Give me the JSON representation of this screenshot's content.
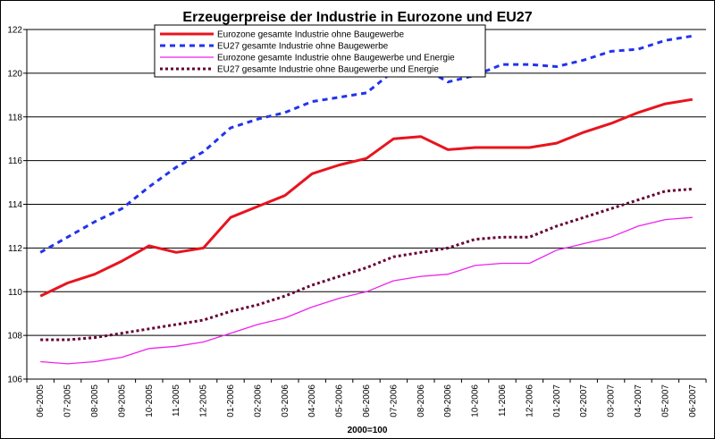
{
  "chart_data": {
    "type": "line",
    "title": "Erzeugerpreise der Industrie in Eurozone und EU27",
    "xlabel": "2000=100",
    "ylabel": "",
    "ylim": [
      106,
      122
    ],
    "yticks": [
      106,
      108,
      110,
      112,
      114,
      116,
      118,
      120,
      122
    ],
    "grid": "horizontal",
    "legend_position": "top-center",
    "categories": [
      "06-2005",
      "07-2005",
      "08-2005",
      "09-2005",
      "10-2005",
      "11-2005",
      "12-2005",
      "01-2006",
      "02-2006",
      "03-2006",
      "04-2006",
      "05-2006",
      "06-2006",
      "07-2006",
      "08-2006",
      "09-2006",
      "10-2006",
      "11-2006",
      "12-2006",
      "01-2007",
      "02-2007",
      "03-2007",
      "04-2007",
      "05-2007",
      "06-2007"
    ],
    "series": [
      {
        "name": "Eurozone gesamte Industrie ohne Baugewerbe",
        "color": "#e8141e",
        "style": "solid-thick",
        "values": [
          109.8,
          110.4,
          110.8,
          111.4,
          112.1,
          111.8,
          112.0,
          113.4,
          113.9,
          114.4,
          115.4,
          115.8,
          116.1,
          117.0,
          117.1,
          116.5,
          116.6,
          116.6,
          116.6,
          116.8,
          117.3,
          117.7,
          118.2,
          118.6,
          118.8
        ]
      },
      {
        "name": "EU27 gesamte Industrie ohne Baugewerbe",
        "color": "#2233ee",
        "style": "dashed-thick",
        "values": [
          111.8,
          112.5,
          113.2,
          113.8,
          114.8,
          115.7,
          116.4,
          117.5,
          117.9,
          118.2,
          118.7,
          118.9,
          119.1,
          120.1,
          120.3,
          119.6,
          119.9,
          120.4,
          120.4,
          120.3,
          120.6,
          121.0,
          121.1,
          121.5,
          121.7
        ]
      },
      {
        "name": "Eurozone gesamte Industrie ohne Baugewerbe und Energie",
        "color": "#ee22ee",
        "style": "solid-thin",
        "values": [
          106.8,
          106.7,
          106.8,
          107.0,
          107.4,
          107.5,
          107.7,
          108.1,
          108.5,
          108.8,
          109.3,
          109.7,
          110.0,
          110.5,
          110.7,
          110.8,
          111.2,
          111.3,
          111.3,
          111.9,
          112.2,
          112.5,
          113.0,
          113.3,
          113.4
        ]
      },
      {
        "name": "EU27 gesamte Industrie ohne Baugewerbe und Energie",
        "color": "#660033",
        "style": "dotted-thick",
        "values": [
          107.8,
          107.8,
          107.9,
          108.1,
          108.3,
          108.5,
          108.7,
          109.1,
          109.4,
          109.8,
          110.3,
          110.7,
          111.1,
          111.6,
          111.8,
          112.0,
          112.4,
          112.5,
          112.5,
          113.0,
          113.4,
          113.8,
          114.2,
          114.6,
          114.7
        ]
      }
    ]
  }
}
